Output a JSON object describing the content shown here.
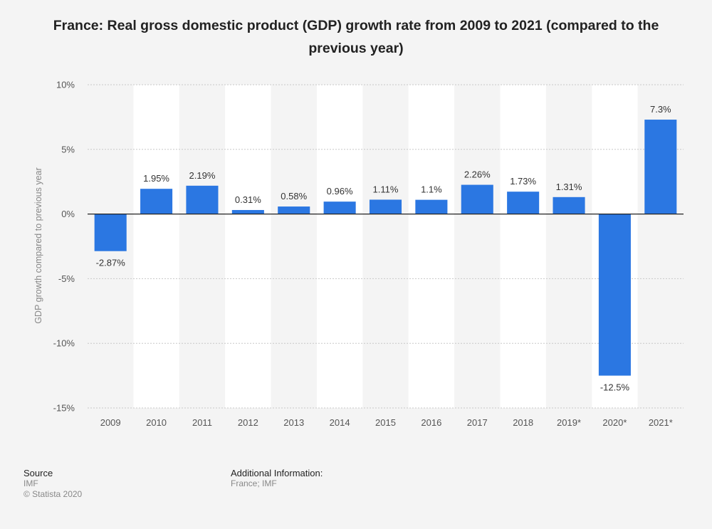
{
  "title": "France: Real gross domestic product (GDP) growth rate from 2009 to 2021 (compared to the previous year)",
  "colors": {
    "bar": "#2b77e2",
    "band": "#ffffff",
    "grid": "#c8c8c8",
    "axis": "#222222"
  },
  "chart_data": {
    "type": "bar",
    "title": "France: Real gross domestic product (GDP) growth rate from 2009 to 2021 (compared to the previous year)",
    "xlabel": "",
    "ylabel": "GDP growth compared to previous year",
    "categories": [
      "2009",
      "2010",
      "2011",
      "2012",
      "2013",
      "2014",
      "2015",
      "2016",
      "2017",
      "2018",
      "2019*",
      "2020*",
      "2021*"
    ],
    "values": [
      -2.87,
      1.95,
      2.19,
      0.31,
      0.58,
      0.96,
      1.11,
      1.1,
      2.26,
      1.73,
      1.31,
      -12.5,
      7.3
    ],
    "value_labels": [
      "-2.87%",
      "1.95%",
      "2.19%",
      "0.31%",
      "0.58%",
      "0.96%",
      "1.11%",
      "1.1%",
      "2.26%",
      "1.73%",
      "1.31%",
      "-12.5%",
      "7.3%"
    ],
    "ylim": [
      -15,
      10
    ],
    "yticks": [
      10,
      5,
      0,
      -5,
      -10,
      -15
    ],
    "ytick_labels": [
      "10%",
      "5%",
      "0%",
      "-5%",
      "-10%",
      "-15%"
    ],
    "grid": true,
    "legend": "none"
  },
  "footer": {
    "source_heading": "Source",
    "source_lines": [
      "IMF",
      "© Statista 2020"
    ],
    "info_heading": "Additional Information:",
    "info_lines": [
      "France; IMF"
    ]
  }
}
